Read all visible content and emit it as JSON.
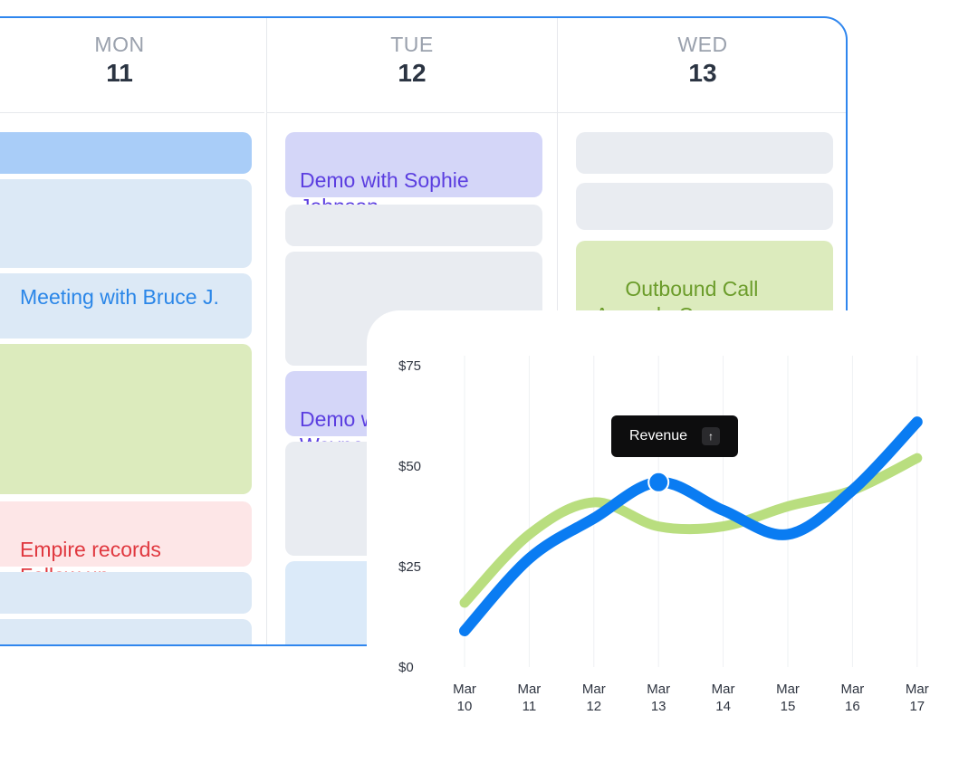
{
  "calendar": {
    "days": [
      {
        "dow": "MON",
        "num": "11"
      },
      {
        "dow": "TUE",
        "num": "12"
      },
      {
        "dow": "WED",
        "num": "13"
      }
    ],
    "events": {
      "meeting_bruce": "Meeting with Bruce J.",
      "empire_records": "Empire records\nFollow up",
      "demo_sophie": "Demo with Sophie\nJohnson",
      "demo_wayne": "Demo with\nWayne",
      "outbound_call": "Outbound Call\n Amanda C."
    }
  },
  "chart": {
    "tooltip_label": "Revenue",
    "tooltip_icon": "arrow-up-icon",
    "colors": {
      "blue_series": "#0a7cf2",
      "green_series": "#b9de7f"
    }
  },
  "chart_data": {
    "type": "line",
    "x": [
      "Mar 10",
      "Mar 11",
      "Mar 12",
      "Mar 13",
      "Mar 14",
      "Mar 15",
      "Mar 16",
      "Mar 17"
    ],
    "x_tick_lines": [
      [
        "Mar",
        "10"
      ],
      [
        "Mar",
        "11"
      ],
      [
        "Mar",
        "12"
      ],
      [
        "Mar",
        "13"
      ],
      [
        "Mar",
        "14"
      ],
      [
        "Mar",
        "15"
      ],
      [
        "Mar",
        "16"
      ],
      [
        "Mar",
        "17"
      ]
    ],
    "series": [
      {
        "values": [
          9,
          27,
          37,
          46,
          39,
          33,
          44,
          61
        ],
        "color": "#0a7cf2"
      },
      {
        "values": [
          16,
          33,
          41,
          35,
          35,
          40,
          44,
          52
        ],
        "color": "#b9de7f"
      }
    ],
    "highlight": {
      "x_index": 3,
      "series_index": 0
    },
    "yticks": [
      "$75",
      "$50",
      "$25",
      "$0"
    ],
    "ytick_values": [
      75,
      50,
      25,
      0
    ],
    "ylim": [
      0,
      75
    ],
    "grid": "vertical"
  }
}
